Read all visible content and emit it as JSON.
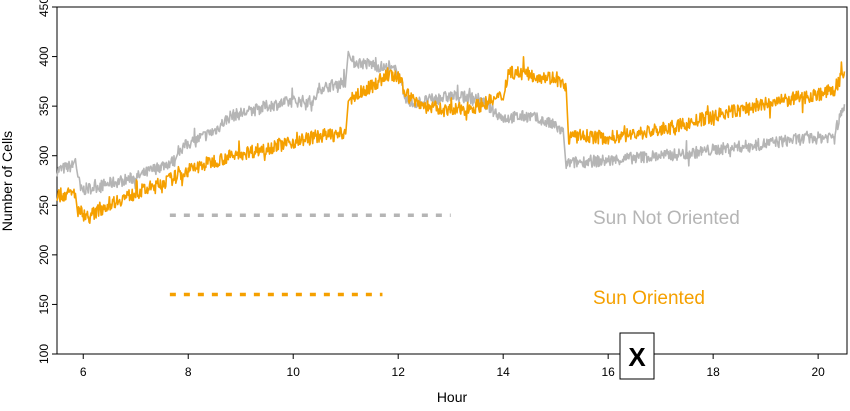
{
  "chart_data": {
    "type": "line",
    "title": "",
    "xlabel": "Hour",
    "ylabel": "Number of Cells",
    "xlim": [
      5.5,
      20.55
    ],
    "ylim": [
      100,
      450
    ],
    "x_ticks": [
      6,
      8,
      10,
      12,
      14,
      16,
      18,
      20
    ],
    "y_ticks": [
      100,
      150,
      200,
      250,
      300,
      350,
      400,
      450
    ],
    "grid": false,
    "legend_position": "right-middle",
    "series": [
      {
        "name": "Sun Not Oriented",
        "color": "#b5b5b5",
        "dash_level": 240,
        "dash_x_range": [
          7.65,
          13.0
        ],
        "x": [
          5.5,
          5.8,
          5.85,
          5.95,
          6.5,
          7.0,
          7.5,
          7.75,
          7.8,
          8.0,
          8.5,
          8.8,
          9.2,
          9.5,
          10.0,
          10.4,
          10.5,
          10.8,
          11.0,
          11.05,
          11.1,
          11.5,
          12.0,
          12.1,
          12.2,
          12.5,
          13.0,
          13.5,
          14.0,
          14.5,
          15.0,
          15.15,
          15.2,
          15.5,
          16.0,
          16.5,
          17.0,
          17.5,
          18.0,
          18.5,
          19.0,
          19.5,
          20.0,
          20.3,
          20.5
        ],
        "values": [
          285,
          290,
          295,
          265,
          272,
          278,
          290,
          295,
          305,
          312,
          325,
          340,
          345,
          350,
          355,
          355,
          368,
          372,
          375,
          405,
          395,
          392,
          385,
          365,
          352,
          355,
          360,
          358,
          338,
          340,
          330,
          322,
          292,
          294,
          295,
          298,
          300,
          302,
          306,
          309,
          312,
          316,
          318,
          320,
          352
        ]
      },
      {
        "name": "Sun Oriented",
        "color": "#f5a000",
        "dash_level": 160,
        "dash_x_range": [
          7.65,
          11.7
        ],
        "x": [
          5.5,
          5.85,
          5.9,
          6.1,
          6.5,
          7.0,
          7.5,
          8.0,
          8.5,
          9.0,
          9.5,
          10.0,
          10.5,
          11.0,
          11.05,
          11.1,
          11.5,
          11.8,
          12.0,
          12.2,
          12.5,
          13.0,
          13.5,
          14.0,
          14.1,
          14.5,
          15.0,
          15.2,
          15.25,
          15.5,
          16.0,
          16.5,
          17.0,
          17.5,
          18.0,
          18.5,
          19.0,
          19.5,
          20.0,
          20.3,
          20.5
        ],
        "values": [
          260,
          262,
          245,
          238,
          252,
          262,
          272,
          285,
          295,
          302,
          308,
          314,
          320,
          322,
          355,
          358,
          370,
          382,
          378,
          360,
          350,
          345,
          350,
          360,
          385,
          382,
          378,
          368,
          318,
          320,
          318,
          322,
          326,
          332,
          340,
          346,
          352,
          357,
          362,
          366,
          385
        ]
      }
    ],
    "legend_entries": [
      "Sun Not Oriented",
      "Sun Oriented"
    ],
    "annotation": {
      "text": "X",
      "x": 16.45,
      "y": 100
    }
  }
}
